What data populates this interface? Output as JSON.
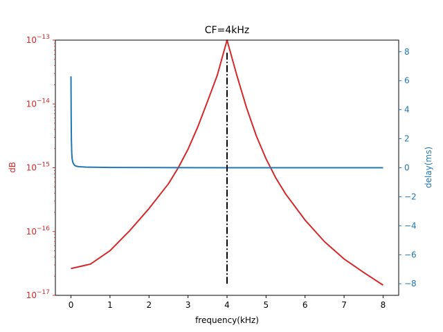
{
  "chart_data": {
    "type": "line",
    "title": "CF=4kHz",
    "xlabel": "frequency(kHz)",
    "ylabel_left": "dB",
    "ylabel_right": "delay(ms)",
    "xlim": [
      -0.4,
      8.4
    ],
    "ylim_left_log10": [
      -17,
      -13
    ],
    "ylim_right": [
      -8.8,
      8.8
    ],
    "y_left_scale": "log",
    "x_ticks": [
      "0",
      "1",
      "2",
      "3",
      "4",
      "5",
      "6",
      "7",
      "8"
    ],
    "y_left_ticks": [
      {
        "base": "10",
        "exp": "−13",
        "log10": -13
      },
      {
        "base": "10",
        "exp": "−14",
        "log10": -14
      },
      {
        "base": "10",
        "exp": "−15",
        "log10": -15
      },
      {
        "base": "10",
        "exp": "−16",
        "log10": -16
      },
      {
        "base": "10",
        "exp": "−17",
        "log10": -17
      }
    ],
    "y_right_ticks": [
      {
        "label": "8",
        "value": 8
      },
      {
        "label": "6",
        "value": 6
      },
      {
        "label": "4",
        "value": 4
      },
      {
        "label": "2",
        "value": 2
      },
      {
        "label": "0",
        "value": 0
      },
      {
        "label": "−2",
        "value": -2
      },
      {
        "label": "−4",
        "value": -4
      },
      {
        "label": "−6",
        "value": -6
      },
      {
        "label": "−8",
        "value": -8
      }
    ],
    "series": [
      {
        "axis": "left",
        "color": "#d62728",
        "x": [
          0,
          0.5,
          1,
          1.5,
          2,
          2.5,
          2.75,
          3,
          3.25,
          3.5,
          3.75,
          4,
          4.25,
          4.5,
          4.75,
          5,
          5.25,
          5.5,
          6,
          6.5,
          7,
          7.5,
          8
        ],
        "log10_y": [
          -16.58,
          -16.51,
          -16.3,
          -15.99,
          -15.64,
          -15.25,
          -15.0,
          -14.71,
          -14.36,
          -13.96,
          -13.55,
          -13.0,
          -13.55,
          -14.06,
          -14.5,
          -14.86,
          -15.16,
          -15.41,
          -15.82,
          -16.16,
          -16.43,
          -16.64,
          -16.84
        ]
      },
      {
        "axis": "right",
        "color": "#1f77b4",
        "x": [
          0,
          0.005,
          0.01,
          0.02,
          0.03,
          0.05,
          0.08,
          0.12,
          0.2,
          0.4,
          1,
          2,
          4,
          6,
          8
        ],
        "y": [
          6.3,
          3.5,
          2.0,
          1.0,
          0.6,
          0.35,
          0.2,
          0.12,
          0.07,
          0.04,
          0.02,
          0.01,
          0.0,
          0.0,
          0.0
        ]
      }
    ],
    "vline": {
      "x": 4,
      "y_from": -8,
      "y_to": 8,
      "axis": "right",
      "color": "#000000",
      "style": "dashdot"
    }
  }
}
